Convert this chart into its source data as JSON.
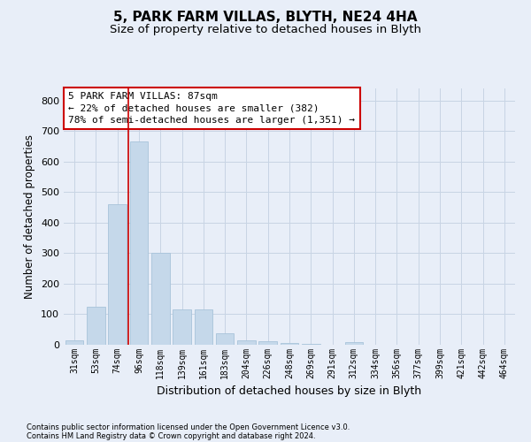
{
  "title": "5, PARK FARM VILLAS, BLYTH, NE24 4HA",
  "subtitle": "Size of property relative to detached houses in Blyth",
  "xlabel": "Distribution of detached houses by size in Blyth",
  "ylabel": "Number of detached properties",
  "categories": [
    "31sqm",
    "53sqm",
    "74sqm",
    "96sqm",
    "118sqm",
    "139sqm",
    "161sqm",
    "183sqm",
    "204sqm",
    "226sqm",
    "248sqm",
    "269sqm",
    "291sqm",
    "312sqm",
    "334sqm",
    "356sqm",
    "377sqm",
    "399sqm",
    "421sqm",
    "442sqm",
    "464sqm"
  ],
  "values": [
    15,
    125,
    460,
    665,
    300,
    115,
    115,
    38,
    15,
    12,
    7,
    2,
    0,
    8,
    0,
    0,
    0,
    0,
    0,
    0,
    0
  ],
  "bar_color": "#c5d8ea",
  "bar_edge_color": "#a8c4da",
  "grid_color": "#c8d4e4",
  "background_color": "#e8eef8",
  "annotation_box_color": "#ffffff",
  "annotation_border_color": "#cc0000",
  "property_line_color": "#cc0000",
  "annotation_text_line1": "5 PARK FARM VILLAS: 87sqm",
  "annotation_text_line2": "← 22% of detached houses are smaller (382)",
  "annotation_text_line3": "78% of semi-detached houses are larger (1,351) →",
  "footnote_line1": "Contains HM Land Registry data © Crown copyright and database right 2024.",
  "footnote_line2": "Contains public sector information licensed under the Open Government Licence v3.0.",
  "ylim": [
    0,
    840
  ],
  "yticks": [
    0,
    100,
    200,
    300,
    400,
    500,
    600,
    700,
    800
  ],
  "title_fontsize": 11,
  "subtitle_fontsize": 9.5,
  "annotation_fontsize": 8,
  "tick_fontsize": 7,
  "ylabel_fontsize": 8.5,
  "xlabel_fontsize": 9,
  "footnote_fontsize": 6
}
